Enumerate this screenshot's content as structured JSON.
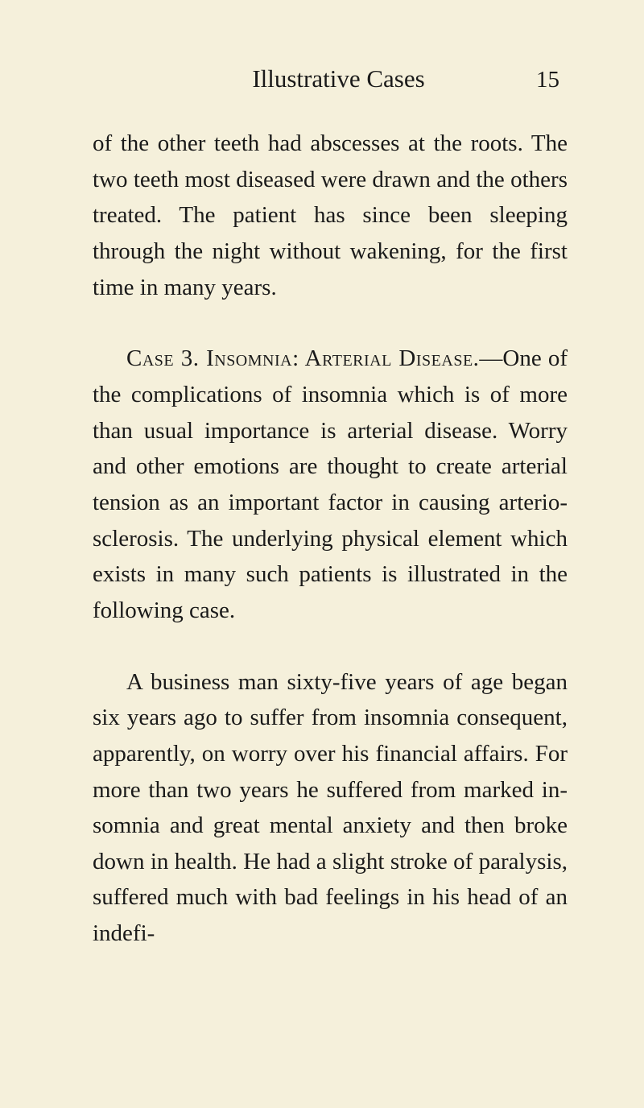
{
  "header": {
    "running_title": "Illustrative Cases",
    "page_number": "15"
  },
  "paragraphs": {
    "p1": "of the other teeth had abscesses at the roots. The two teeth most diseased were drawn and the others treated. The pa­tient has since been sleeping through the night without wakening, for the first time in many years.",
    "p2_case": "Case 3. Insomnia: Arterial Disease.",
    "p2_rest": "—One of the complications of insomnia which is of more than usual importance is arterial disease. Worry and other emotions are thought to create arterial tension as an important factor in causing arterio-sclerosis. The underlying phys­ical element which exists in many such patients is illustrated in the following case.",
    "p3": "A business man sixty-five years of age began six years ago to suffer from insom­nia consequent, apparently, on worry over his financial affairs. For more than two years he suffered from marked in­somnia and great mental anxiety and then broke down in health. He had a slight stroke of paralysis, suffered much with bad feelings in his head of an indefi-"
  },
  "colors": {
    "background": "#f5f0db",
    "text": "#1a1a1a"
  },
  "typography": {
    "body_fontsize": 29,
    "header_fontsize": 31,
    "line_height": 1.54,
    "font_family": "Georgia, Times New Roman, serif"
  }
}
